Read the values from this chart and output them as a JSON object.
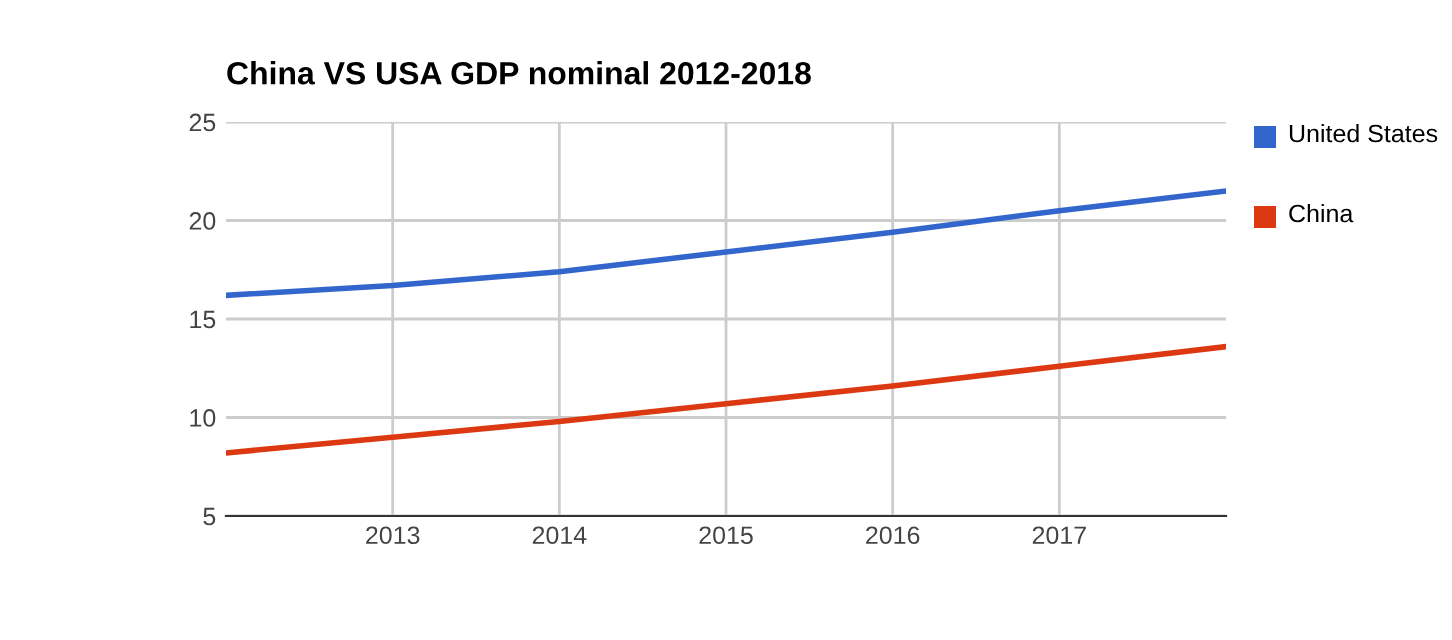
{
  "chart_data": {
    "type": "line",
    "title": "China VS USA GDP nominal 2012-2018",
    "x": [
      2012,
      2013,
      2014,
      2015,
      2016,
      2017,
      2018
    ],
    "series": [
      {
        "name": "United States",
        "color": "#3366cc",
        "values": [
          16.2,
          16.7,
          17.4,
          18.4,
          19.4,
          20.5,
          21.5
        ]
      },
      {
        "name": "China",
        "color": "#dc3912",
        "values": [
          8.2,
          9.0,
          9.8,
          10.7,
          11.6,
          12.6,
          13.6
        ]
      }
    ],
    "xlim": [
      2012,
      2018
    ],
    "xticks": [
      2013,
      2014,
      2015,
      2016,
      2017
    ],
    "ylim": [
      5,
      25
    ],
    "yticks": [
      5,
      10,
      15,
      20,
      25
    ],
    "grid": true,
    "legend": "right",
    "marker": "none",
    "line_style": "solid"
  }
}
